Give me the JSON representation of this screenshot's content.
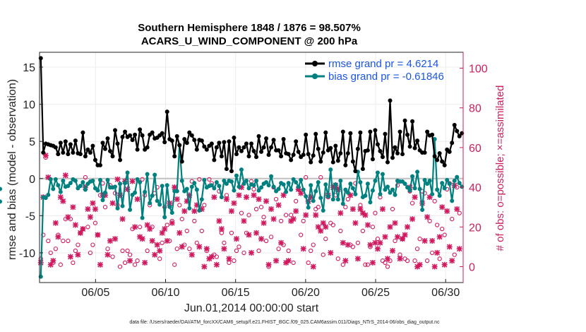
{
  "chart_data": {
    "type": "line",
    "title": "Southern Hemisphere 1848 / 1876 = 98.507%",
    "subtitle": "ACARS_U_WIND_COMPONENT @ 200 hPa",
    "xlabel": "Jun.01,2014 00:00:00 start",
    "ylabel": "rmse and bias (model - observation)",
    "y2label": "# of obs: o=possible; ×=assimilated",
    "footer": "data file: /Users/raeder/DAI/ATM_forcXX/CAM6_setup/f.e21.FHIST_BGC.f09_025.CAM6assim.011/Diags_NTrS_2014-06/obs_diag_output.nc",
    "xlim": [
      1.0,
      31.25
    ],
    "ylim": [
      -14,
      17
    ],
    "y2lim": [
      -8,
      108
    ],
    "x_ticks": [
      5,
      10,
      15,
      20,
      25,
      30
    ],
    "x_tick_labels": [
      "06/05",
      "06/10",
      "06/15",
      "06/20",
      "06/25",
      "06/30"
    ],
    "y_ticks": [
      -10,
      -5,
      0,
      5,
      10,
      15
    ],
    "y_tick_labels": [
      "-10",
      "-5",
      "0",
      "5",
      "10",
      "15"
    ],
    "y2_ticks": [
      0,
      20,
      40,
      60,
      80,
      100
    ],
    "y2_tick_labels": [
      "0",
      "20",
      "40",
      "60",
      "80",
      "100"
    ],
    "grid": true,
    "legend_position": "top-right",
    "colors": {
      "rmse": "#000000",
      "bias": "#00807f",
      "obs": "#d0195f",
      "zero": "#c0c0c0",
      "grid": "#ececec"
    },
    "series": [
      {
        "name": "rmse grand pr = 4.6214",
        "axis": "left",
        "values": [
          16.2,
          3.5,
          4.7,
          4.6,
          4.5,
          4.4,
          4.2,
          3.3,
          4.8,
          3.5,
          5.0,
          3.3,
          4.6,
          3.5,
          5.1,
          3.4,
          3.3,
          6.2,
          3.0,
          3.9,
          3.5,
          4.4,
          2.5,
          1.8,
          1.8,
          4.8,
          4.0,
          5.4,
          3.7,
          3.0,
          6.5,
          4.7,
          2.5,
          5.6,
          6.3,
          5.6,
          5.8,
          5.2,
          5.9,
          3.9,
          6.6,
          5.8,
          3.9,
          4.2,
          5.9,
          6.2,
          5.4,
          5.5,
          5.8,
          6.1,
          4.9,
          9.0,
          5.3,
          5.1,
          3.0,
          5.7,
          4.5,
          2.3,
          5.3,
          4.8,
          6.2,
          5.8,
          5.2,
          3.9,
          5.2,
          5.1,
          4.3,
          3.9,
          4.4,
          4.7,
          2.5,
          4.2,
          4.8,
          3.0,
          4.9,
          1.3,
          5.0,
          1.0,
          5.5,
          3.3,
          4.2,
          3.7,
          4.2,
          4.7,
          3.0,
          4.7,
          3.7,
          2.9,
          5.7,
          3.6,
          4.2,
          5.4,
          3.2,
          4.2,
          5.2,
          3.8,
          3.8,
          3.0,
          5.3,
          3.4,
          3.3,
          2.5,
          3.2,
          5.0,
          3.6,
          2.9,
          3.2,
          5.9,
          3.3,
          2.2,
          3.1,
          6.0,
          4.0,
          2.3,
          3.5,
          6.2,
          3.8,
          4.1,
          2.2,
          4.4,
          2.4,
          3.4,
          6.3,
          1.8,
          3.4,
          6.1,
          2.3,
          1.0,
          4.0,
          6.2,
          1.3,
          3.7,
          3.8,
          6.3,
          2.6,
          6.5,
          4.6,
          3.7,
          2.9,
          6.0,
          2.2,
          10.5,
          2.8,
          4.2,
          3.4,
          6.3,
          3.3,
          7.8,
          5.9,
          4.3,
          7.7,
          4.1,
          5.1,
          3.8,
          3.5,
          3.5,
          6.3,
          5.8,
          5.9,
          3.0,
          2.5,
          3.4,
          2.3,
          1.8,
          3.9,
          3.6,
          4.8,
          7.2,
          6.4,
          5.7,
          6.1
        ]
      },
      {
        "name": "bias grand pr = -0.61846",
        "axis": "left",
        "values": [
          -13.2,
          -2.5,
          -2.6,
          -2.2,
          -0.1,
          -1.4,
          -0.1,
          -0.9,
          -1.8,
          -0.3,
          -1.1,
          -1.0,
          -0.6,
          -0.1,
          -0.3,
          -1.3,
          -1.0,
          -0.5,
          -1.5,
          -0.7,
          -0.4,
          -0.3,
          -1.3,
          -1.6,
          -0.2,
          -2.9,
          -1.9,
          -0.2,
          -1.2,
          -1.2,
          -1.1,
          -4.0,
          -0.7,
          -3.7,
          -0.6,
          0.8,
          -4.2,
          -2.2,
          -1.9,
          -0.1,
          -0.5,
          -5.3,
          -1.8,
          0.6,
          -3.3,
          -2.3,
          0.5,
          -3.0,
          -3.5,
          -1.0,
          -5.2,
          -0.9,
          -3.8,
          -4.6,
          -1.7,
          -1.7,
          4.5,
          -0.3,
          -1.7,
          -1.4,
          -4.0,
          -1.1,
          -0.6,
          -1.5,
          -4.3,
          -2.8,
          -0.2,
          -1.2,
          -1.0,
          -0.9,
          -1.3,
          -0.5,
          -1.0,
          -2.5,
          -0.3,
          -0.7,
          -0.3,
          -0.4,
          -1.6,
          0.4,
          -1.1,
          1.2,
          -0.7,
          -0.3,
          -1.3,
          -0.8,
          -0.9,
          -0.3,
          -1.6,
          -1.2,
          -0.7,
          -0.5,
          -0.9,
          0.3,
          -1.1,
          -1.7,
          -1.4,
          -0.6,
          -0.8,
          -1.8,
          -0.6,
          -1.5,
          -0.1,
          -0.5,
          -1.1,
          -0.2,
          -1.5,
          -2.4,
          -3.9,
          -0.9,
          -3.0,
          -1.7,
          -0.5,
          -2.6,
          -4.3,
          -0.8,
          -2.4,
          1.2,
          -2.8,
          -0.8,
          -2.8,
          -0.3,
          -3.4,
          -1.5,
          -1.9,
          -0.7,
          -1.3,
          -2.1,
          0.9,
          -0.5,
          -2.5,
          -2.3,
          -0.7,
          -3.2,
          -1.6,
          -0.3,
          0.8,
          -2.1,
          0.6,
          -1.5,
          -1.1,
          -1.9,
          -1.5,
          -2.2,
          -0.3,
          -0.4,
          -0.4,
          -0.7,
          -1.2,
          -1.6,
          0.3,
          -1.3,
          0.9,
          -1.4,
          -4.2,
          -0.2,
          -0.7,
          -0.3,
          -2.1,
          5.3,
          -1.5,
          -2.3,
          -0.6,
          -1.3,
          -0.2,
          -0.7,
          -3.0,
          -0.3,
          0.2,
          -0.6,
          -1.1,
          -1.4,
          -3.1
        ]
      },
      {
        "name": "# of obs possible (o)",
        "axis": "right",
        "values": [
          4,
          16,
          55,
          13,
          7,
          2,
          9,
          16,
          1,
          13,
          24,
          13,
          24,
          2,
          8,
          11,
          17,
          19,
          45,
          20,
          7,
          11,
          22,
          16,
          36,
          42,
          30,
          9,
          41,
          5,
          37,
          31,
          0,
          8,
          2,
          8,
          6,
          19,
          1,
          3,
          20,
          44,
          36,
          8,
          31,
          20,
          37,
          40,
          4,
          12,
          30,
          21,
          13,
          23,
          1,
          9,
          31,
          24,
          11,
          18,
          9,
          43,
          23,
          12,
          44,
          18,
          31,
          8,
          44,
          42,
          6,
          5,
          38,
          17,
          12,
          36,
          2,
          17,
          3,
          8,
          10,
          27,
          7,
          17,
          26,
          43,
          39,
          29,
          8,
          30,
          25,
          13,
          0,
          15,
          40,
          34,
          9,
          23,
          11,
          26,
          8,
          26,
          2,
          33,
          39,
          16,
          23,
          45,
          2,
          8,
          11,
          29,
          30,
          45,
          6,
          14,
          35,
          22,
          21,
          36,
          4,
          18,
          1,
          30,
          34,
          11,
          10,
          42,
          12,
          31,
          18,
          1,
          1,
          10,
          20,
          27,
          14,
          35,
          3,
          2,
          0,
          3,
          29,
          13,
          41,
          6,
          14,
          4,
          3,
          38,
          32,
          3,
          9,
          14,
          38,
          37,
          3,
          23,
          7,
          33,
          21,
          4,
          19,
          16,
          39,
          42,
          24,
          6,
          40,
          27
        ]
      },
      {
        "name": "# of obs assimilated (x)",
        "axis": "right",
        "values": [
          2,
          35,
          56,
          45,
          1,
          3,
          22,
          15,
          35,
          33,
          46,
          25,
          5,
          30,
          21,
          6,
          17,
          19,
          40,
          29,
          25,
          32,
          29,
          16,
          1,
          36,
          36,
          6,
          13,
          32,
          14,
          44,
          36,
          24,
          43,
          39,
          3,
          43,
          20,
          34,
          15,
          14,
          2,
          21,
          19,
          13,
          6,
          11,
          8,
          17,
          19,
          13,
          32,
          22,
          40,
          34,
          17,
          10,
          28,
          33,
          36,
          6,
          28,
          31,
          10,
          29,
          0,
          9,
          4,
          5,
          35,
          1,
          23,
          19,
          9,
          34,
          4,
          28,
          32,
          14,
          36,
          40,
          23,
          35,
          16,
          7,
          36,
          17,
          34,
          14,
          22,
          33,
          1,
          29,
          24,
          3,
          31,
          12,
          36,
          2,
          3,
          23,
          24,
          28,
          39,
          37,
          9,
          26,
          33,
          35,
          0,
          26,
          20,
          18,
          22,
          20,
          36,
          7,
          40,
          41,
          39,
          27,
          12,
          3,
          11,
          36,
          29,
          22,
          4,
          29,
          27,
          26,
          21,
          11,
          2,
          12,
          9,
          12,
          29,
          15,
          4,
          20,
          8,
          22,
          15,
          4,
          14,
          16,
          20,
          40,
          24,
          35,
          0,
          1,
          32,
          13,
          25,
          35,
          13,
          0,
          7,
          15,
          30,
          1,
          28,
          10,
          3,
          41,
          29,
          9
        ]
      }
    ]
  }
}
